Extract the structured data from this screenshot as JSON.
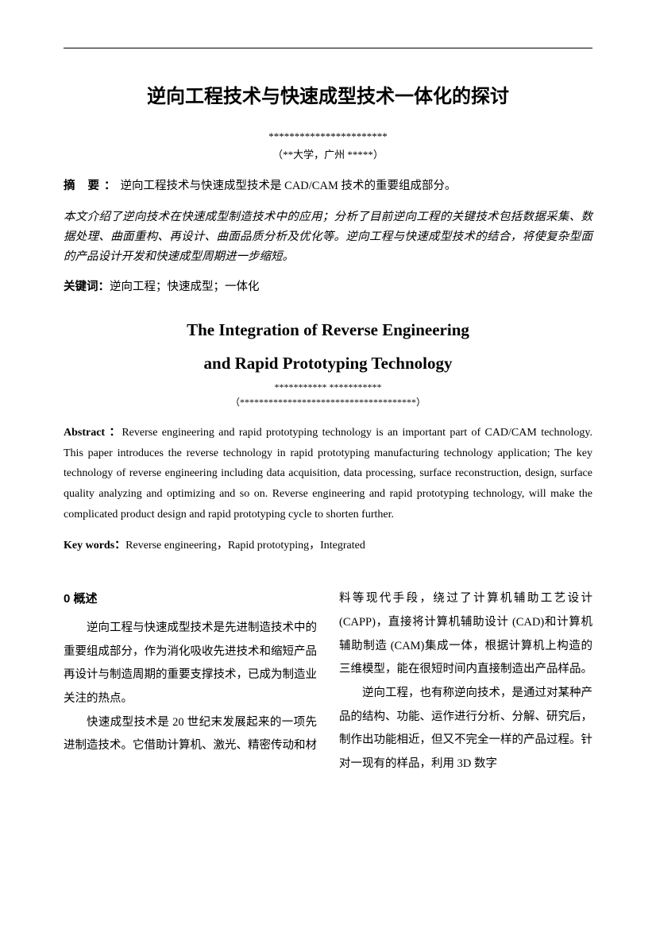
{
  "title_cn": "逆向工程技术与快速成型技术一体化的探讨",
  "authors_cn": "***********************",
  "affiliation_cn": "（**大学，广州  *****）",
  "abstract_cn_label": "摘   要：",
  "abstract_cn_lead": "逆向工程技术与快速成型技术是 CAD/CAM 技术的重要组成部分。",
  "abstract_cn_body": "本文介绍了逆向技术在快速成型制造技术中的应用；分析了目前逆向工程的关键技术包括数据采集、数据处理、曲面重构、再设计、曲面品质分析及优化等。逆向工程与快速成型技术的结合，将使复杂型面的产品设计开发和快速成型周期进一步缩短。",
  "keywords_cn_label": "关键词：",
  "keywords_cn": "逆向工程；快速成型；一体化",
  "title_en_line1": "The Integration of Reverse Engineering",
  "title_en_line2": "and Rapid Prototyping Technology",
  "authors_en": "***********    ***********",
  "affiliation_en": "（*************************************）",
  "abstract_en_label": "Abstract ：",
  "abstract_en": "Reverse engineering and rapid prototyping technology is an important part of CAD/CAM technology. This paper introduces the reverse technology in rapid prototyping manufacturing technology application; The key technology of reverse engineering including data acquisition, data processing, surface reconstruction, design, surface quality analyzing and optimizing and so on. Reverse engineering and rapid prototyping technology, will make the complicated product design and rapid prototyping cycle to shorten further.",
  "keywords_en_label": "Key words：",
  "keywords_en": "Reverse engineering，Rapid prototyping，Integrated",
  "section0_head": "0   概述",
  "section0_p1": "逆向工程与快速成型技术是先进制造技术中的重要组成部分，作为消化吸收先进技术和缩短产品再设计与制造周期的重要支撑技术，已成为制造业关注的热点。",
  "section0_p2": "快速成型技术是 20 世纪末发展起来的一项先进制造技术。它借助计算机、激光、精密传动和材料等现代手段，绕过了计算机辅助工艺设计 (CAPP)，直接将计算机辅助设计 (CAD)和计算机辅助制造 (CAM)集成一体，根据计算机上构造的三维模型，能在很短时间内直接制造出产品样品。",
  "section0_p3": "逆向工程，也有称逆向技术，是通过对某种产品的结构、功能、运作进行分析、分解、研究后，制作出功能相近，但又不完全一样的产品过程。针对一现有的样品，利用 3D 数字"
}
